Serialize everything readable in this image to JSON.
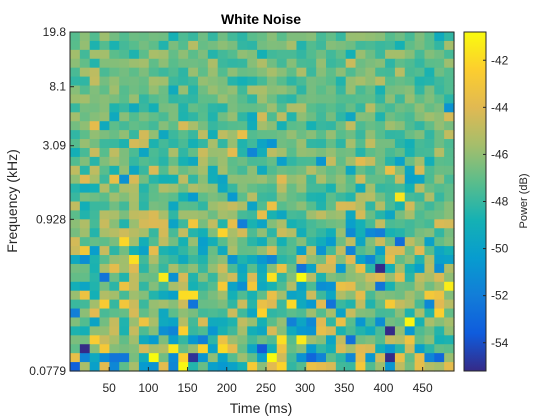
{
  "chart_data": {
    "type": "heatmap",
    "title": "White Noise",
    "xlabel": "Time (ms)",
    "ylabel": "Frequency (kHz)",
    "colorbar_label": "Power (dB)",
    "x_range": [
      0,
      490
    ],
    "x_ticks": [
      50,
      100,
      150,
      200,
      250,
      300,
      350,
      400,
      450
    ],
    "y_scale": "log",
    "y_range": [
      0.0779,
      19.8
    ],
    "y_ticks": [
      0.0779,
      0.928,
      3.09,
      8.1,
      19.8
    ],
    "y_tick_labels": [
      "0.0779",
      "0.928",
      "3.09",
      "8.1",
      "19.8"
    ],
    "color_range": [
      -55.2,
      -40.8
    ],
    "colorbar_ticks": [
      -54,
      -52,
      -50,
      -48,
      -46,
      -44,
      -42
    ],
    "colormap": "parula",
    "grid": false,
    "colorbar_position": "right",
    "grid_columns": 39,
    "grid_rows": 38,
    "power_trend": "values near -47 dB at high frequencies with small spread; wider spread between about -54 and -42 dB at low frequencies"
  }
}
